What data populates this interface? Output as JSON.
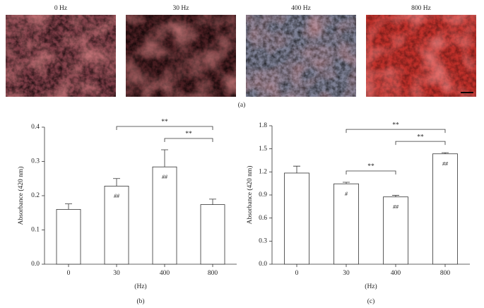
{
  "images": {
    "labels": [
      "0 Hz",
      "30 Hz",
      "400 Hz",
      "800 Hz"
    ],
    "panel": "(a)"
  },
  "chart_data": [
    {
      "type": "bar",
      "panel": "(b)",
      "x_label": "(Hz)",
      "y_label": "Absorbance (420 nm)",
      "categories": [
        "0",
        "30",
        "400",
        "800"
      ],
      "values": [
        0.16,
        0.228,
        0.284,
        0.174
      ],
      "errors": [
        0.016,
        0.022,
        0.05,
        0.016
      ],
      "markers": [
        null,
        "##",
        "##",
        null
      ],
      "comparisons": [
        {
          "from": 2,
          "to": 3,
          "label": "**"
        },
        {
          "from": 1,
          "to": 3,
          "label": "**"
        }
      ],
      "color": "#ffffff",
      "ylim": [
        0,
        0.4
      ],
      "yticks": [
        {
          "value": 0,
          "label": "0.0"
        },
        0.1,
        0.2,
        0.3,
        0.4
      ],
      "grid": false
    },
    {
      "type": "bar",
      "panel": "(c)",
      "x_label": "(Hz)",
      "y_label": "Absorbance (420 nm)",
      "categories": [
        "0",
        "30",
        "400",
        "800"
      ],
      "values": [
        1.185,
        1.045,
        0.875,
        1.435
      ],
      "errors": [
        0.09,
        0.02,
        0.02,
        0.015
      ],
      "markers": [
        null,
        "#",
        "##",
        "##"
      ],
      "comparisons": [
        {
          "from": 1,
          "to": 2,
          "label": "**"
        },
        {
          "from": 2,
          "to": 3,
          "label": "**"
        },
        {
          "from": 1,
          "to": 3,
          "label": "**"
        }
      ],
      "color": "#ffffff",
      "ylim": [
        0,
        1.8
      ],
      "yticks": [
        {
          "value": 0,
          "label": "0.0"
        },
        0.3,
        0.6,
        0.9,
        1.2,
        1.5,
        1.8
      ],
      "grid": false
    }
  ]
}
